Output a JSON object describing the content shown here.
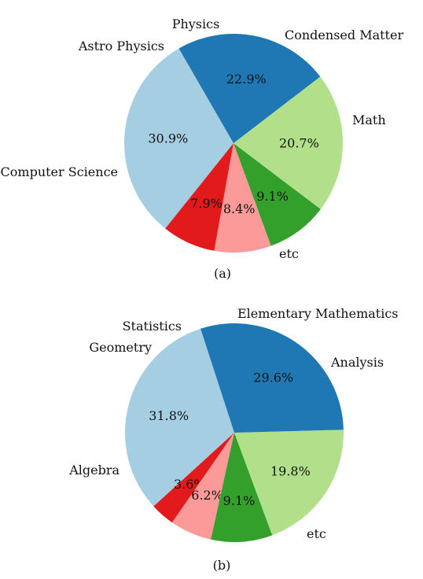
{
  "chart_data": [
    {
      "type": "pie",
      "caption": "(a)",
      "slices": [
        {
          "label": "Computer Science",
          "value": 30.9,
          "pct_label": "30.9%",
          "color": "#a6cee3"
        },
        {
          "label": "Astro Physics",
          "value": 7.9,
          "pct_label": "7.9%",
          "color": "#e31a1c"
        },
        {
          "label": "Physics",
          "value": 8.4,
          "pct_label": "8.4%",
          "color": "#fb9a99"
        },
        {
          "label": "Condensed Matter",
          "value": 9.1,
          "pct_label": "9.1%",
          "color": "#33a02c"
        },
        {
          "label": "Math",
          "value": 20.7,
          "pct_label": "20.7%",
          "color": "#b2df8a"
        },
        {
          "label": "etc",
          "value": 22.9,
          "pct_label": "22.9%",
          "color": "#1f78b4"
        }
      ]
    },
    {
      "type": "pie",
      "caption": "(b)",
      "slices": [
        {
          "label": "Algebra",
          "value": 31.8,
          "pct_label": "31.8%",
          "color": "#a6cee3"
        },
        {
          "label": "Geometry",
          "value": 3.6,
          "pct_label": "3.6%",
          "color": "#e31a1c"
        },
        {
          "label": "Statistics",
          "value": 6.2,
          "pct_label": "6.2%",
          "color": "#fb9a99"
        },
        {
          "label": "Elementary Mathematics",
          "value": 9.1,
          "pct_label": "9.1%",
          "color": "#33a02c"
        },
        {
          "label": "Analysis",
          "value": 19.8,
          "pct_label": "19.8%",
          "color": "#b2df8a"
        },
        {
          "label": "etc",
          "value": 29.6,
          "pct_label": "29.6%",
          "color": "#1f78b4"
        }
      ]
    }
  ]
}
